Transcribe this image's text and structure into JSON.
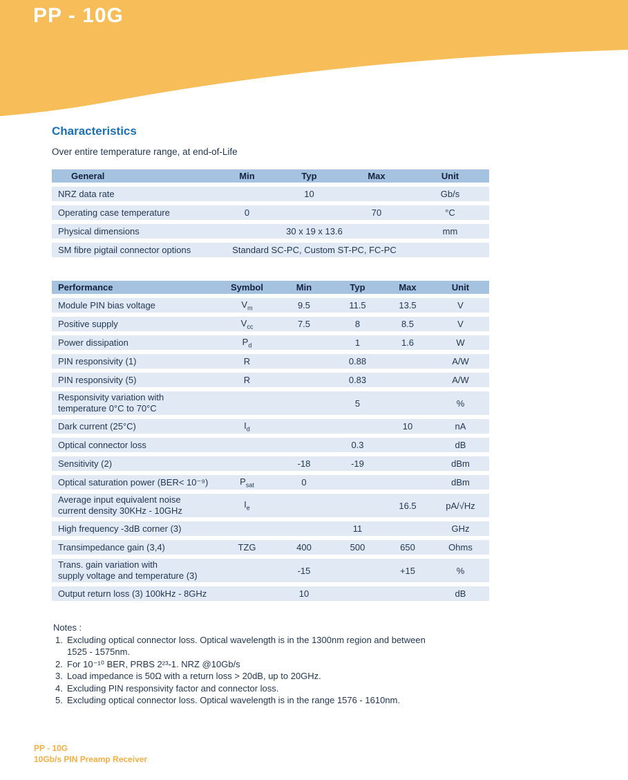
{
  "header": {
    "title": "PP - 10G"
  },
  "section": {
    "heading": "Characteristics",
    "subtitle": "Over entire temperature range, at end-of-Life"
  },
  "general_table": {
    "headers": [
      "General",
      "Min",
      "Typ",
      "Max",
      "Unit"
    ],
    "has_symbol": false,
    "rows": [
      {
        "name": [
          "NRZ  data rate"
        ],
        "min": "",
        "typ": "10",
        "max": "",
        "unit": "Gb/s"
      },
      {
        "name": [
          "Operating case temperature"
        ],
        "min": "0",
        "typ": "",
        "max": "70",
        "unit": "°C"
      },
      {
        "name": [
          "Physical dimensions"
        ],
        "span": "30 x 19 x 13.6",
        "unit": "mm"
      },
      {
        "name": [
          "SM fibre pigtail connector options"
        ],
        "span": "Standard SC-PC,  Custom ST-PC,  FC-PC",
        "unit": ""
      }
    ]
  },
  "performance_table": {
    "headers": [
      "Performance",
      "Symbol",
      "Min",
      "Typ",
      "Max",
      "Unit"
    ],
    "has_symbol": true,
    "rows": [
      {
        "name": [
          "Module PIN bias voltage"
        ],
        "symbol": {
          "base": "V",
          "sub": "m"
        },
        "min": "9.5",
        "typ": "11.5",
        "max": "13.5",
        "unit": "V"
      },
      {
        "name": [
          "Positive supply"
        ],
        "symbol": {
          "base": "V",
          "sub": "cc"
        },
        "min": "7.5",
        "typ": "8",
        "max": "8.5",
        "unit": "V"
      },
      {
        "name": [
          "Power dissipation"
        ],
        "symbol": {
          "base": "P",
          "sub": "d"
        },
        "min": "",
        "typ": "1",
        "max": "1.6",
        "unit": "W"
      },
      {
        "name": [
          "PIN  responsivity (1)"
        ],
        "symbol": {
          "base": "R",
          "sub": ""
        },
        "min": "",
        "typ": "0.88",
        "max": "",
        "unit": "A/W"
      },
      {
        "name": [
          "PIN  responsivity (5)"
        ],
        "symbol": {
          "base": "R",
          "sub": ""
        },
        "min": "",
        "typ": "0.83",
        "max": "",
        "unit": "A/W"
      },
      {
        "name": [
          "Responsivity variation with",
          "temperature 0°C to 70°C"
        ],
        "symbol": null,
        "min": "",
        "typ": "5",
        "max": "",
        "unit": "%"
      },
      {
        "name": [
          "Dark current (25°C)"
        ],
        "symbol": {
          "base": "I",
          "sub": "d"
        },
        "min": "",
        "typ": "",
        "max": "10",
        "unit": "nA"
      },
      {
        "name": [
          "Optical connector loss"
        ],
        "symbol": null,
        "min": "",
        "typ": "0.3",
        "max": "",
        "unit": "dB"
      },
      {
        "name": [
          "Sensitivity (2)"
        ],
        "symbol": null,
        "min": "-18",
        "typ": "-19",
        "max": "",
        "unit": "dBm"
      },
      {
        "name": [
          "Optical saturation power (BER< 10⁻⁹)"
        ],
        "symbol": {
          "base": "P",
          "sub": "sat"
        },
        "min": "0",
        "typ": "",
        "max": "",
        "unit": "dBm"
      },
      {
        "name": [
          "Average input equivalent noise",
          "current density 30KHz - 10GHz"
        ],
        "symbol": {
          "base": "I",
          "sub": "e"
        },
        "min": "",
        "typ": "",
        "max": "16.5",
        "unit": "pA/√Hz"
      },
      {
        "name": [
          "High frequency -3dB  corner (3)"
        ],
        "symbol": null,
        "min": "",
        "typ": "11",
        "max": "",
        "unit": "GHz"
      },
      {
        "name": [
          "Transimpedance gain (3,4)"
        ],
        "symbol": {
          "base": "TZG",
          "sub": ""
        },
        "min": "400",
        "typ": "500",
        "max": "650",
        "unit": "Ohms"
      },
      {
        "name": [
          "Trans. gain variation with",
          "supply voltage and temperature (3)"
        ],
        "symbol": null,
        "min": "-15",
        "typ": "",
        "max": "+15",
        "unit": "%"
      },
      {
        "name": [
          "Output return loss (3) 100kHz - 8GHz"
        ],
        "symbol": null,
        "min": "10",
        "typ": "",
        "max": "",
        "unit": "dB"
      }
    ]
  },
  "notes": {
    "heading": "Notes :",
    "items": [
      {
        "num": "1.",
        "lines": [
          "Excluding optical connector loss. Optical wavelength is in the 1300nm region and between",
          "1525 - 1575nm."
        ]
      },
      {
        "num": "2.",
        "lines": [
          "For 10⁻¹⁰ BER, PRBS 2²³-1.  NRZ @10Gb/s"
        ]
      },
      {
        "num": "3.",
        "lines": [
          "Load impedance is 50Ω with a return loss > 20dB, up to 20GHz."
        ]
      },
      {
        "num": "4.",
        "lines": [
          "Excluding PIN responsivity factor and connector loss."
        ]
      },
      {
        "num": "5.",
        "lines": [
          "Excluding optical connector loss. Optical wavelength is in the range 1576 - 1610nm."
        ]
      }
    ]
  },
  "footer": {
    "line1": "PP - 10G",
    "line2": "10Gb/s PIN Preamp Receiver"
  },
  "colors": {
    "band_yellow": "#F6BD58",
    "table_header_blue": "#A5C2E0",
    "table_row_blue": "#E1EAF4",
    "heading_blue": "#1B70B5",
    "body_text": "#233754",
    "footer_orange": "#F6AE43",
    "title_white": "#FFFFFF"
  }
}
